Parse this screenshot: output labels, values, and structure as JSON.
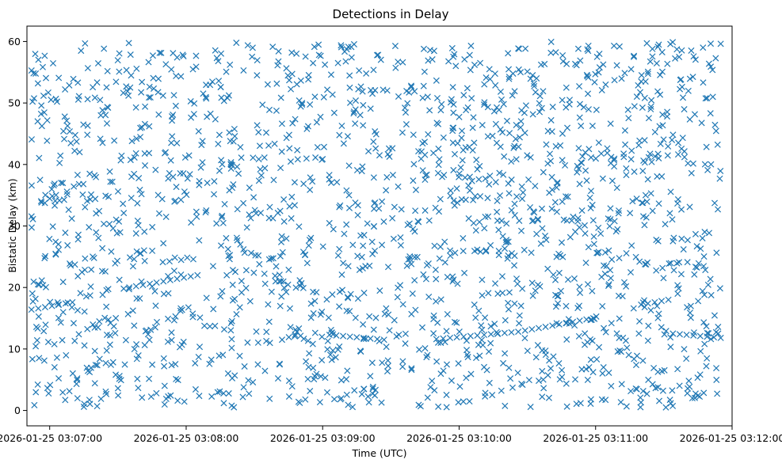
{
  "chart_data": {
    "type": "scatter",
    "title": "Detections in Delay",
    "xlabel": "Time (UTC)",
    "ylabel": "Bistatic Delay (km)",
    "marker": "x",
    "color": "#1f77b4",
    "grid": false,
    "legend": "none",
    "x_type": "datetime",
    "xlim": [
      "2026-01-25 03:06:50",
      "2026-01-25 03:12:00"
    ],
    "ylim": [
      -2.5,
      62.5
    ],
    "x_ticks": [
      "2026-01-25 03:07:00",
      "2026-01-25 03:08:00",
      "2026-01-25 03:09:00",
      "2026-01-25 03:10:00",
      "2026-01-25 03:11:00",
      "2026-01-25 03:12:00"
    ],
    "x_tick_labels": [
      "2026-01-25 03:07:00",
      "2026-01-25 03:08:00",
      "2026-01-25 03:09:00",
      "2026-01-25 03:10:00",
      "2026-01-25 03:11:00",
      "2026-01-25 03:12:00"
    ],
    "y_ticks": [
      0,
      10,
      20,
      30,
      40,
      50,
      60
    ],
    "y_tick_labels": [
      "0",
      "10",
      "20",
      "30",
      "40",
      "50",
      "60"
    ],
    "clutter_detections": {
      "time_range": [
        "2026-01-25 03:06:52",
        "2026-01-25 03:11:55"
      ],
      "delay_range_km": [
        0.5,
        60
      ],
      "count": 1900
    },
    "series": [
      {
        "points": [
          [
            "2026-01-25 03:06:52",
            16.4
          ],
          [
            "2026-01-25 03:06:55",
            16.6
          ],
          [
            "2026-01-25 03:06:58",
            16.8
          ],
          [
            "2026-01-25 03:07:01",
            17.0
          ],
          [
            "2026-01-25 03:07:04",
            17.2
          ],
          [
            "2026-01-25 03:07:07",
            17.4
          ],
          [
            "2026-01-25 03:07:10",
            17.6
          ],
          [
            "2026-01-25 03:07:35",
            20.0
          ],
          [
            "2026-01-25 03:07:38",
            20.2
          ],
          [
            "2026-01-25 03:07:41",
            20.4
          ],
          [
            "2026-01-25 03:07:44",
            20.6
          ],
          [
            "2026-01-25 03:07:47",
            20.8
          ],
          [
            "2026-01-25 03:07:50",
            21.0
          ],
          [
            "2026-01-25 03:07:53",
            21.2
          ],
          [
            "2026-01-25 03:07:56",
            21.4
          ],
          [
            "2026-01-25 03:07:59",
            21.6
          ],
          [
            "2026-01-25 03:08:02",
            21.8
          ],
          [
            "2026-01-25 03:08:05",
            22.0
          ],
          [
            "2026-01-25 03:09:03",
            12.3
          ],
          [
            "2026-01-25 03:09:06",
            12.2
          ],
          [
            "2026-01-25 03:09:09",
            12.1
          ],
          [
            "2026-01-25 03:09:12",
            12.0
          ],
          [
            "2026-01-25 03:09:15",
            11.9
          ],
          [
            "2026-01-25 03:09:18",
            11.8
          ],
          [
            "2026-01-25 03:09:21",
            11.7
          ],
          [
            "2026-01-25 03:09:24",
            11.6
          ],
          [
            "2026-01-25 03:09:27",
            11.5
          ],
          [
            "2026-01-25 03:09:50",
            11.6
          ],
          [
            "2026-01-25 03:09:53",
            11.7
          ],
          [
            "2026-01-25 03:09:56",
            11.8
          ],
          [
            "2026-01-25 03:09:59",
            11.9
          ],
          [
            "2026-01-25 03:10:02",
            12.0
          ],
          [
            "2026-01-25 03:10:05",
            12.1
          ],
          [
            "2026-01-25 03:10:08",
            12.2
          ],
          [
            "2026-01-25 03:10:11",
            12.3
          ],
          [
            "2026-01-25 03:10:14",
            12.4
          ],
          [
            "2026-01-25 03:10:17",
            12.5
          ],
          [
            "2026-01-25 03:10:20",
            12.6
          ],
          [
            "2026-01-25 03:10:23",
            12.7
          ],
          [
            "2026-01-25 03:10:26",
            12.8
          ],
          [
            "2026-01-25 03:10:29",
            13.0
          ],
          [
            "2026-01-25 03:10:32",
            13.2
          ],
          [
            "2026-01-25 03:10:35",
            13.4
          ],
          [
            "2026-01-25 03:10:38",
            13.6
          ],
          [
            "2026-01-25 03:10:41",
            13.8
          ],
          [
            "2026-01-25 03:10:44",
            14.0
          ],
          [
            "2026-01-25 03:10:47",
            14.2
          ],
          [
            "2026-01-25 03:10:50",
            14.4
          ],
          [
            "2026-01-25 03:10:53",
            14.6
          ],
          [
            "2026-01-25 03:10:56",
            14.8
          ],
          [
            "2026-01-25 03:10:59",
            15.0
          ],
          [
            "2026-01-25 03:11:20",
            17.2
          ],
          [
            "2026-01-25 03:11:23",
            17.4
          ],
          [
            "2026-01-25 03:11:26",
            17.6
          ],
          [
            "2026-01-25 03:11:29",
            17.8
          ],
          [
            "2026-01-25 03:11:32",
            18.0
          ],
          [
            "2026-01-25 03:11:34",
            12.5
          ],
          [
            "2026-01-25 03:11:37",
            12.4
          ],
          [
            "2026-01-25 03:11:40",
            12.3
          ],
          [
            "2026-01-25 03:11:43",
            12.2
          ],
          [
            "2026-01-25 03:11:46",
            12.1
          ],
          [
            "2026-01-25 03:11:49",
            12.0
          ],
          [
            "2026-01-25 03:11:52",
            11.9
          ],
          [
            "2026-01-25 03:11:55",
            11.8
          ]
        ]
      }
    ]
  }
}
